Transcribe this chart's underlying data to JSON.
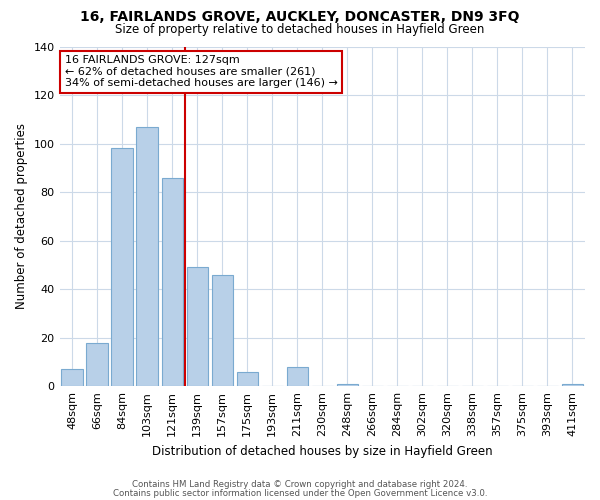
{
  "title": "16, FAIRLANDS GROVE, AUCKLEY, DONCASTER, DN9 3FQ",
  "subtitle": "Size of property relative to detached houses in Hayfield Green",
  "xlabel": "Distribution of detached houses by size in Hayfield Green",
  "ylabel": "Number of detached properties",
  "bar_labels": [
    "48sqm",
    "66sqm",
    "84sqm",
    "103sqm",
    "121sqm",
    "139sqm",
    "157sqm",
    "175sqm",
    "193sqm",
    "211sqm",
    "230sqm",
    "248sqm",
    "266sqm",
    "284sqm",
    "302sqm",
    "320sqm",
    "338sqm",
    "357sqm",
    "375sqm",
    "393sqm",
    "411sqm"
  ],
  "bar_values": [
    7,
    18,
    98,
    107,
    86,
    49,
    46,
    6,
    0,
    8,
    0,
    1,
    0,
    0,
    0,
    0,
    0,
    0,
    0,
    0,
    1
  ],
  "bar_color": "#b8d0e8",
  "bar_edge_color": "#7aaad0",
  "vline_color": "#cc0000",
  "vline_bar_index": 4,
  "annotation_text": "16 FAIRLANDS GROVE: 127sqm\n← 62% of detached houses are smaller (261)\n34% of semi-detached houses are larger (146) →",
  "annotation_box_color": "#ffffff",
  "annotation_box_edge": "#cc0000",
  "ylim": [
    0,
    140
  ],
  "yticks": [
    0,
    20,
    40,
    60,
    80,
    100,
    120,
    140
  ],
  "footnote1": "Contains HM Land Registry data © Crown copyright and database right 2024.",
  "footnote2": "Contains public sector information licensed under the Open Government Licence v3.0.",
  "background_color": "#ffffff",
  "grid_color": "#ccd9e8"
}
